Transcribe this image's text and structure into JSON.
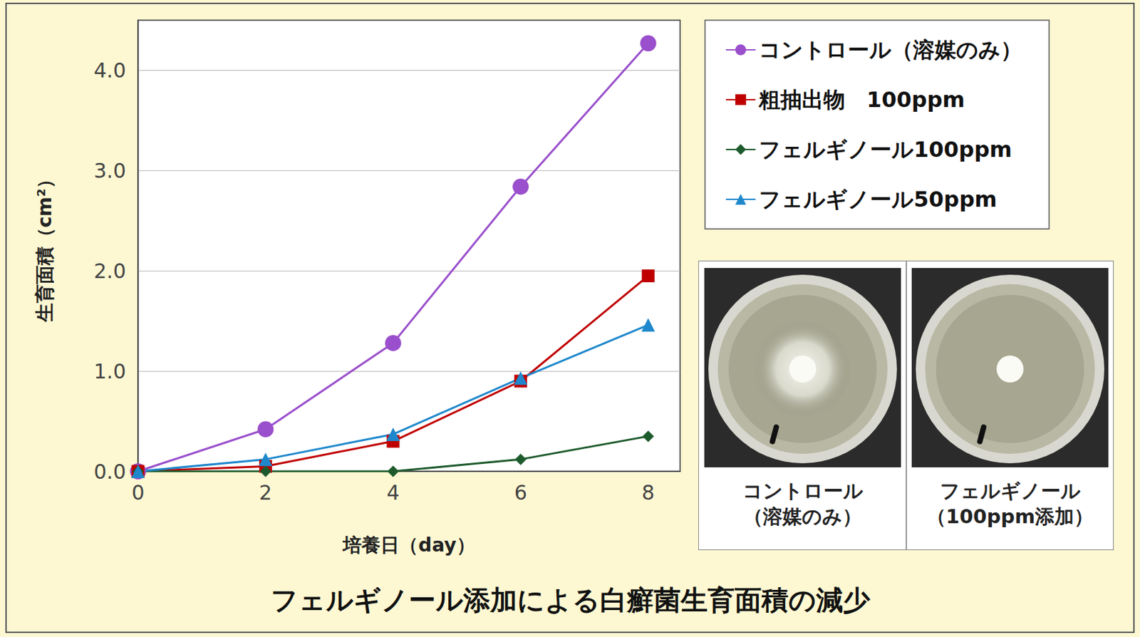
{
  "chart_data": {
    "type": "line",
    "title": "フェルギノール添加による白癬菌生育面積の減少",
    "x_label": "培養日（day）",
    "y_label": "生育面積（cm²）",
    "x": [
      0,
      2,
      4,
      6,
      8
    ],
    "xlim": [
      0,
      8.5
    ],
    "xticks": [
      0,
      2,
      4,
      6,
      8
    ],
    "ylim": [
      0,
      4.5
    ],
    "yticks": [
      {
        "value": 0,
        "label": "0.0"
      },
      {
        "value": 1,
        "label": "1.0"
      },
      {
        "value": 2,
        "label": "2.0"
      },
      {
        "value": 3,
        "label": "3.0"
      },
      {
        "value": 4,
        "label": "4.0"
      }
    ],
    "grid": true,
    "legend": "right",
    "series": [
      {
        "name": "コントロール（溶媒のみ）",
        "color": "#9a4fcc",
        "marker": "circle",
        "values": [
          0,
          0.42,
          1.28,
          2.84,
          4.27
        ]
      },
      {
        "name": "粗抽出物　100ppm",
        "color": "#c00000",
        "marker": "square",
        "values": [
          0,
          0.05,
          0.3,
          0.9,
          1.95
        ]
      },
      {
        "name": "フェルギノール100ppm",
        "color": "#1d5a2c",
        "marker": "diamond",
        "values": [
          0,
          0,
          0,
          0.12,
          0.35
        ]
      },
      {
        "name": "フェルギノール50ppm",
        "color": "#1f88cc",
        "marker": "triangle",
        "values": [
          0,
          0.12,
          0.37,
          0.93,
          1.46
        ]
      }
    ],
    "annotations": [
      {
        "text": [
          "コントロール",
          "（溶媒のみ）"
        ]
      },
      {
        "text": [
          "フェルギノール",
          "（100ppm添加）"
        ]
      }
    ]
  }
}
